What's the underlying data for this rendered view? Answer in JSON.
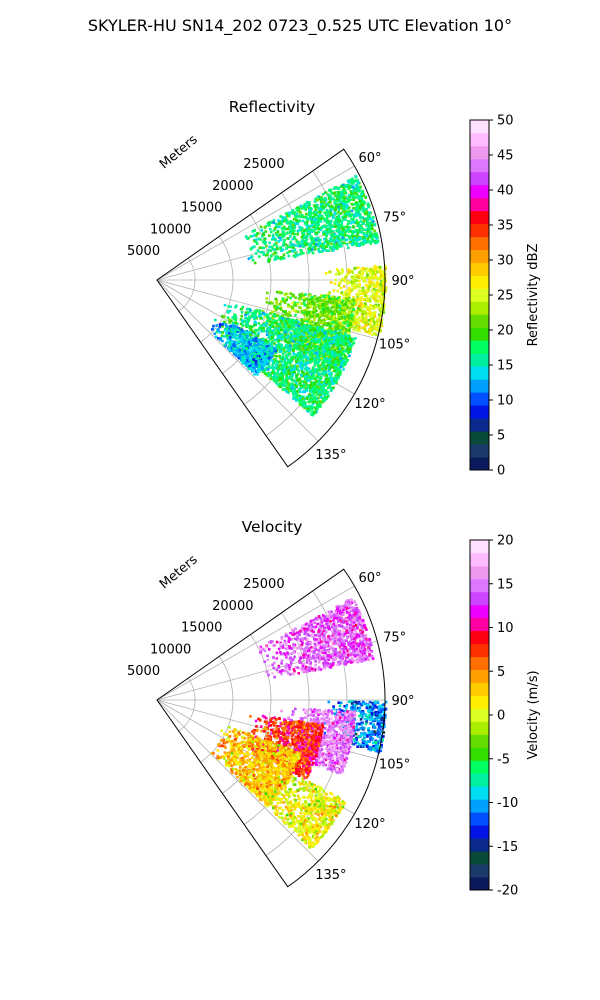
{
  "figure": {
    "title": "SKYLER-HU  SN14_202  0723_0.525 UTC Elevation 10°"
  },
  "chart_data": [
    {
      "type": "heatmap",
      "projection": "polar-sector",
      "title": "Reflectivity",
      "radial_label": "Meters",
      "range_ticks": [
        "5000",
        "10000",
        "15000",
        "20000",
        "25000"
      ],
      "azimuth_ticks": [
        "60°",
        "75°",
        "90°",
        "105°",
        "120°",
        "135°"
      ],
      "azimuth_range_deg": [
        55,
        145
      ],
      "range_max_m": 30000,
      "grid": true,
      "colorbar": {
        "label": "Reflectivity dBZ",
        "ticks": [
          "0",
          "5",
          "10",
          "15",
          "20",
          "25",
          "30",
          "35",
          "40",
          "45",
          "50"
        ],
        "range": [
          0,
          50
        ],
        "colors": [
          "#0b1a5c",
          "#1a3a6a",
          "#0a4a3a",
          "#0a2a8f",
          "#0014e6",
          "#0050ff",
          "#00a0ff",
          "#00dcf0",
          "#00f0a0",
          "#00ff60",
          "#33dd00",
          "#66dd00",
          "#aaee00",
          "#ddff22",
          "#ffee00",
          "#ffcc00",
          "#ffa000",
          "#ff7000",
          "#ff3000",
          "#ff0010",
          "#ff00a0",
          "#ee00ff",
          "#cc44ff",
          "#dd77ff",
          "#ee99ee",
          "#ffbbff",
          "#ffe0ff"
        ]
      },
      "echo_regions": [
        {
          "az": [
            62,
            80
          ],
          "r_m": [
            12000,
            29500
          ],
          "dbz": 17
        },
        {
          "az": [
            86,
            104
          ],
          "r_m": [
            22000,
            30000
          ],
          "dbz": 25
        },
        {
          "az": [
            95,
            116
          ],
          "r_m": [
            14000,
            26000
          ],
          "dbz": 21
        },
        {
          "az": [
            106,
            131
          ],
          "r_m": [
            9000,
            27000
          ],
          "dbz": 17
        },
        {
          "az": [
            120,
            134
          ],
          "r_m": [
            9000,
            18000
          ],
          "dbz": 13
        }
      ]
    },
    {
      "type": "heatmap",
      "projection": "polar-sector",
      "title": "Velocity",
      "radial_label": "Meters",
      "range_ticks": [
        "5000",
        "10000",
        "15000",
        "20000",
        "25000"
      ],
      "azimuth_ticks": [
        "60°",
        "75°",
        "90°",
        "105°",
        "120°",
        "135°"
      ],
      "azimuth_range_deg": [
        55,
        145
      ],
      "range_max_m": 30000,
      "grid": true,
      "colorbar": {
        "label": "Velocity (m/s)",
        "ticks": [
          "-20",
          "-15",
          "-10",
          "-5",
          "0",
          "5",
          "10",
          "15",
          "20"
        ],
        "range": [
          -20,
          20
        ],
        "colors": [
          "#0b1a5c",
          "#1a3a6a",
          "#0a4a3a",
          "#0a2a8f",
          "#0014e6",
          "#0050ff",
          "#00a0ff",
          "#00dcf0",
          "#00f0a0",
          "#00ff60",
          "#33dd00",
          "#66dd00",
          "#aaee00",
          "#ddff22",
          "#ffee00",
          "#ffcc00",
          "#ffa000",
          "#ff7000",
          "#ff3000",
          "#ff0010",
          "#ff00a0",
          "#ee00ff",
          "#cc44ff",
          "#dd77ff",
          "#ee99ee",
          "#ffbbff",
          "#ffe0ff"
        ]
      },
      "echo_regions": [
        {
          "az": [
            62,
            79
          ],
          "r_m": [
            14000,
            29000
          ],
          "v_ms": 14
        },
        {
          "az": [
            90,
            103
          ],
          "r_m": [
            22000,
            30000
          ],
          "v_ms": -11
        },
        {
          "az": [
            93,
            112
          ],
          "r_m": [
            16000,
            26000
          ],
          "v_ms": 15
        },
        {
          "az": [
            98,
            118
          ],
          "r_m": [
            12000,
            22000
          ],
          "v_ms": 8
        },
        {
          "az": [
            110,
            134
          ],
          "r_m": [
            9000,
            20000
          ],
          "v_ms": 3
        },
        {
          "az": [
            118,
            134
          ],
          "r_m": [
            18000,
            28000
          ],
          "v_ms": 1
        }
      ]
    }
  ]
}
